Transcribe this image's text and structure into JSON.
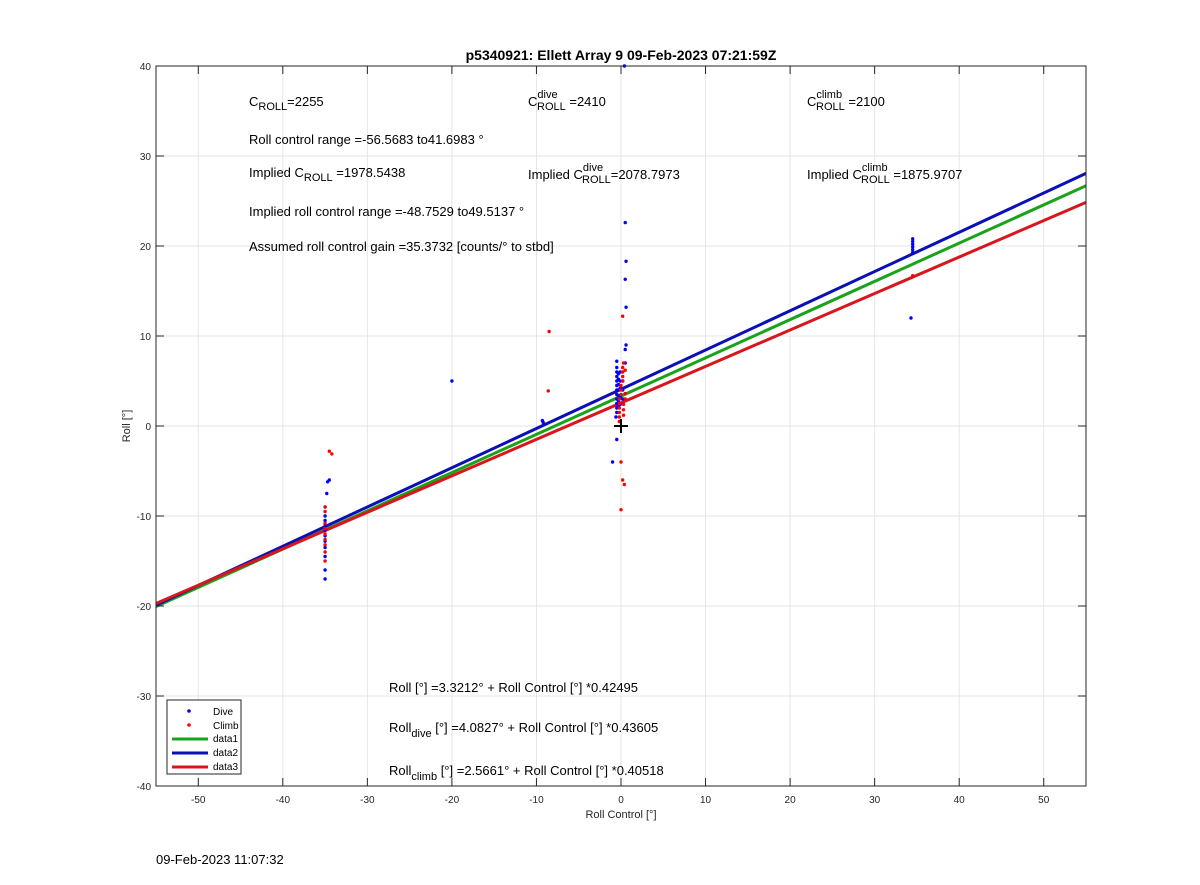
{
  "footer_timestamp": "09-Feb-2023 11:07:32",
  "chart_data": {
    "type": "scatter",
    "title": "p5340921: Ellett Array 9 09-Feb-2023 07:21:59Z",
    "xlabel": "Roll Control [°]",
    "ylabel": "Roll [°]",
    "xlim": [
      -55,
      55
    ],
    "ylim": [
      -40,
      40
    ],
    "xticks": [
      -50,
      -40,
      -30,
      -20,
      -10,
      0,
      10,
      20,
      30,
      40,
      50
    ],
    "yticks": [
      -40,
      -30,
      -20,
      -10,
      0,
      10,
      20,
      30,
      40
    ],
    "grid": true,
    "legend_position": "bottom-left",
    "colors": {
      "dive": "#0000ff",
      "climb": "#ff0000",
      "data1": "#1aa31a",
      "data2": "#0a10b4",
      "data3": "#d8161b",
      "marker": "#000000"
    },
    "series": [
      {
        "name": "Dive",
        "kind": "points",
        "color": "#0000ff",
        "points": [
          [
            -35,
            -17
          ],
          [
            -35,
            -16
          ],
          [
            -35,
            -14.5
          ],
          [
            -35,
            -13.5
          ],
          [
            -35,
            -12.8
          ],
          [
            -35,
            -12.2
          ],
          [
            -35,
            -11.6
          ],
          [
            -35,
            -11
          ],
          [
            -35,
            -10.5
          ],
          [
            -35,
            -10
          ],
          [
            -35,
            -9
          ],
          [
            -34.8,
            -7.5
          ],
          [
            -34.7,
            -6.2
          ],
          [
            -34.5,
            -6
          ],
          [
            -20,
            5
          ],
          [
            -9.3,
            0.6
          ],
          [
            -9.2,
            0.4
          ],
          [
            -0.5,
            -1.5
          ],
          [
            -1,
            -4
          ],
          [
            -0.6,
            1
          ],
          [
            -0.5,
            1.5
          ],
          [
            -0.5,
            2
          ],
          [
            -0.5,
            2.5
          ],
          [
            -0.5,
            3
          ],
          [
            -0.5,
            3.5
          ],
          [
            -0.5,
            4
          ],
          [
            -0.5,
            4.5
          ],
          [
            -0.5,
            5
          ],
          [
            -0.5,
            5.5
          ],
          [
            -0.5,
            6
          ],
          [
            -0.5,
            6.5
          ],
          [
            -0.5,
            7.2
          ],
          [
            -0.3,
            2.2
          ],
          [
            -0.3,
            2.8
          ],
          [
            -0.3,
            3.4
          ],
          [
            -0.3,
            4
          ],
          [
            -0.3,
            4.6
          ],
          [
            -0.3,
            5.2
          ],
          [
            -0.3,
            5.8
          ],
          [
            -0.1,
            2.4
          ],
          [
            -0.1,
            3.2
          ],
          [
            -0.1,
            4.2
          ],
          [
            -0.1,
            5
          ],
          [
            -0.1,
            6
          ],
          [
            0.2,
            3
          ],
          [
            0.2,
            4
          ],
          [
            0.2,
            5
          ],
          [
            0.5,
            7
          ],
          [
            0.5,
            8.5
          ],
          [
            0.6,
            9
          ],
          [
            0.6,
            13.2
          ],
          [
            0.5,
            16.3
          ],
          [
            0.6,
            18.3
          ],
          [
            0.5,
            22.6
          ],
          [
            0.4,
            40
          ],
          [
            34.5,
            19.3
          ],
          [
            34.5,
            19.6
          ],
          [
            34.5,
            19.9
          ],
          [
            34.5,
            20.2
          ],
          [
            34.5,
            20.5
          ],
          [
            34.5,
            20.8
          ],
          [
            34.3,
            12
          ]
        ]
      },
      {
        "name": "Climb",
        "kind": "points",
        "color": "#ff0000",
        "points": [
          [
            -35,
            -15
          ],
          [
            -35,
            -14
          ],
          [
            -35,
            -13.2
          ],
          [
            -35,
            -12.6
          ],
          [
            -35,
            -12
          ],
          [
            -35,
            -11.4
          ],
          [
            -35,
            -10.8
          ],
          [
            -35,
            -9.5
          ],
          [
            -35,
            -9
          ],
          [
            -34.5,
            -2.8
          ],
          [
            -34.2,
            -3.1
          ],
          [
            -8.5,
            10.5
          ],
          [
            -8.6,
            3.9
          ],
          [
            -0.2,
            0.5
          ],
          [
            -0.2,
            1
          ],
          [
            -0.2,
            1.5
          ],
          [
            -0.2,
            2
          ],
          [
            -0.2,
            2.5
          ],
          [
            -0.2,
            3
          ],
          [
            0,
            3.5
          ],
          [
            0,
            4
          ],
          [
            0,
            4.5
          ],
          [
            0.2,
            5
          ],
          [
            0.2,
            5.5
          ],
          [
            0.2,
            6
          ],
          [
            0.2,
            6.5
          ],
          [
            0.3,
            7
          ],
          [
            0.3,
            1.2
          ],
          [
            0.3,
            1.8
          ],
          [
            0.3,
            2.4
          ],
          [
            0.5,
            3
          ],
          [
            0.5,
            3.6
          ],
          [
            0.5,
            6.2
          ],
          [
            0.2,
            12.2
          ],
          [
            0,
            -4
          ],
          [
            0.2,
            -6
          ],
          [
            0.4,
            -6.5
          ],
          [
            0,
            -9.3
          ],
          [
            34.5,
            16.7
          ]
        ]
      },
      {
        "name": "data1",
        "kind": "line",
        "color": "#1aa31a",
        "intercept": 3.3212,
        "slope": 0.42495
      },
      {
        "name": "data2",
        "kind": "line",
        "color": "#0a10b4",
        "intercept": 4.0827,
        "slope": 0.43605
      },
      {
        "name": "data3",
        "kind": "line",
        "color": "#d8161b",
        "intercept": 2.5661,
        "slope": 0.40518
      }
    ],
    "origin_marker": [
      0,
      0
    ],
    "annotations": {
      "c_roll": {
        "base": "C",
        "sub": "ROLL",
        "value": "=2255"
      },
      "c_roll_dive": {
        "base": "C",
        "sup": "dive",
        "sub": "ROLL",
        "value": " =2410"
      },
      "c_roll_climb": {
        "base": "C",
        "sup": "climb",
        "sub": "ROLL",
        "value": " =2100"
      },
      "roll_range": "Roll control range =-56.5683 to41.6983 °",
      "implied_c_roll": {
        "pre": "Implied C",
        "sub": "ROLL",
        "value": " =1978.5438"
      },
      "implied_c_roll_dive": {
        "pre": "Implied C",
        "sup": "dive",
        "sub": "ROLL",
        "value": "=2078.7973"
      },
      "implied_c_roll_climb": {
        "pre": "Implied C",
        "sup": "climb",
        "sub": "ROLL",
        "value": " =1875.9707"
      },
      "implied_range": "Implied roll control range =-48.7529 to49.5137 °",
      "gain": "Assumed roll control gain =35.3732 [counts/° to stbd]",
      "eq_all": "Roll [°] =3.3212° + Roll Control [°] *0.42495",
      "eq_dive": {
        "pre": "Roll",
        "sub": "dive",
        "post": " [°] =4.0827° + Roll Control [°] *0.43605"
      },
      "eq_climb": {
        "pre": "Roll",
        "sub": "climb",
        "post": " [°] =2.5661° + Roll Control [°] *0.40518"
      }
    }
  }
}
